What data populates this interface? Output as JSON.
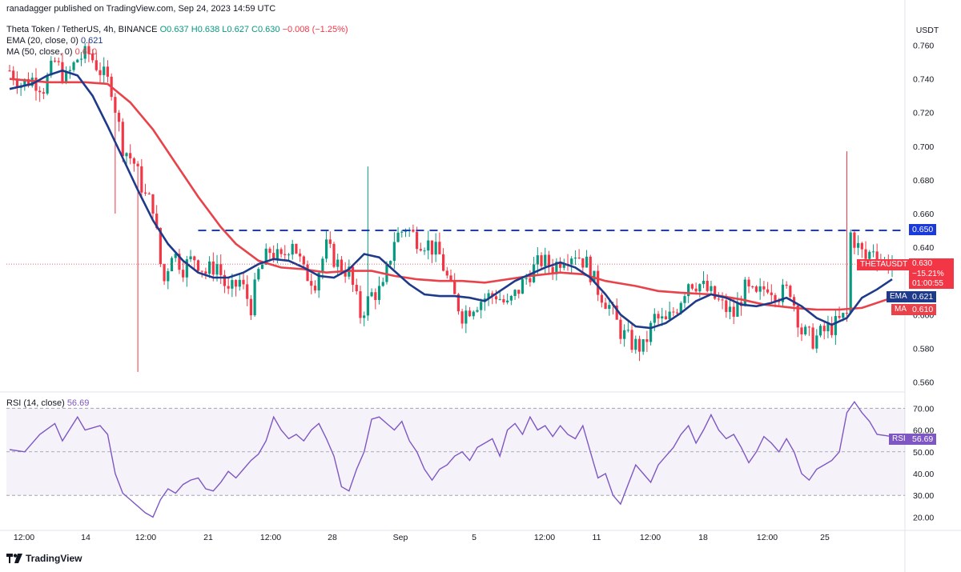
{
  "attribution": "ranadagger published on TradingView.com, Sep 24, 2023 14:59 UTC",
  "legend": {
    "symbol": "Theta Token / TetherUS, 4h, BINANCE",
    "ohlc": {
      "o": "O0.637",
      "h": "H0.638",
      "l": "L0.627",
      "c": "C0.630",
      "chg": "−0.008 (−1.25%)"
    },
    "ema": {
      "label": "EMA (20, close, 0)",
      "value": "0.621"
    },
    "ma": {
      "label": "MA (50, close, 0)",
      "value": "0.610"
    }
  },
  "price_axis": {
    "unit_label": "USDT",
    "ticks": [
      "0.760",
      "0.740",
      "0.720",
      "0.700",
      "0.680",
      "0.660",
      "0.640",
      "0.620",
      "0.600",
      "0.580",
      "0.560"
    ]
  },
  "labels": {
    "resistance": "0.650",
    "symbol_tag": "THETAUSDT",
    "last_price": "0.630",
    "pct_change": "−15.21%",
    "countdown": "01:00:55",
    "ema_tag": "EMA",
    "ema_val": "0.621",
    "ma_tag": "MA",
    "ma_val": "0.610"
  },
  "rsi": {
    "label": "RSI (14, close)",
    "value": "56.69",
    "tag": "RSI",
    "ticks": [
      "70.00",
      "60.00",
      "50.00",
      "40.00",
      "30.00",
      "20.00"
    ]
  },
  "time_axis": [
    "12:00",
    "14",
    "12:00",
    "21",
    "12:00",
    "28",
    "Sep",
    "5",
    "12:00",
    "11",
    "12:00",
    "18",
    "12:00",
    "25"
  ],
  "footer": {
    "brand": "TradingView"
  },
  "colors": {
    "up": "#089981",
    "down": "#f23645",
    "ema": "#1e3a8a",
    "ma": "#e8424a",
    "rsi": "#7e57c2",
    "resistance": "#1a3bd9"
  },
  "chart_data": {
    "type": "candlestick",
    "price_ylim": [
      0.555,
      0.765
    ],
    "rsi_ylim": [
      15,
      76
    ],
    "resistance_level": 0.65,
    "ema_points": [
      [
        0,
        0.734
      ],
      [
        6,
        0.737
      ],
      [
        10,
        0.742
      ],
      [
        14,
        0.745
      ],
      [
        18,
        0.742
      ],
      [
        22,
        0.73
      ],
      [
        26,
        0.712
      ],
      [
        30,
        0.693
      ],
      [
        34,
        0.674
      ],
      [
        38,
        0.656
      ],
      [
        42,
        0.642
      ],
      [
        46,
        0.632
      ],
      [
        50,
        0.625
      ],
      [
        54,
        0.622
      ],
      [
        58,
        0.622
      ],
      [
        62,
        0.625
      ],
      [
        66,
        0.63
      ],
      [
        70,
        0.633
      ],
      [
        74,
        0.632
      ],
      [
        78,
        0.628
      ],
      [
        82,
        0.623
      ],
      [
        86,
        0.622
      ],
      [
        90,
        0.627
      ],
      [
        94,
        0.636
      ],
      [
        98,
        0.634
      ],
      [
        102,
        0.626
      ],
      [
        106,
        0.618
      ],
      [
        110,
        0.612
      ],
      [
        114,
        0.611
      ],
      [
        118,
        0.611
      ],
      [
        122,
        0.61
      ],
      [
        126,
        0.608
      ],
      [
        130,
        0.614
      ],
      [
        134,
        0.62
      ],
      [
        138,
        0.624
      ],
      [
        142,
        0.628
      ],
      [
        146,
        0.631
      ],
      [
        150,
        0.628
      ],
      [
        154,
        0.622
      ],
      [
        158,
        0.612
      ],
      [
        162,
        0.6
      ],
      [
        166,
        0.593
      ],
      [
        170,
        0.592
      ],
      [
        174,
        0.595
      ],
      [
        178,
        0.601
      ],
      [
        182,
        0.608
      ],
      [
        186,
        0.612
      ],
      [
        190,
        0.61
      ],
      [
        194,
        0.606
      ],
      [
        198,
        0.605
      ],
      [
        202,
        0.607
      ],
      [
        206,
        0.61
      ],
      [
        210,
        0.605
      ],
      [
        214,
        0.598
      ],
      [
        218,
        0.594
      ],
      [
        222,
        0.598
      ],
      [
        226,
        0.61
      ],
      [
        230,
        0.615
      ],
      [
        234,
        0.621
      ]
    ],
    "ma_points": [
      [
        0,
        0.74
      ],
      [
        10,
        0.738
      ],
      [
        20,
        0.738
      ],
      [
        26,
        0.737
      ],
      [
        32,
        0.726
      ],
      [
        38,
        0.71
      ],
      [
        44,
        0.69
      ],
      [
        50,
        0.67
      ],
      [
        56,
        0.652
      ],
      [
        60,
        0.642
      ],
      [
        66,
        0.632
      ],
      [
        72,
        0.628
      ],
      [
        78,
        0.627
      ],
      [
        84,
        0.625
      ],
      [
        90,
        0.626
      ],
      [
        96,
        0.626
      ],
      [
        102,
        0.623
      ],
      [
        108,
        0.621
      ],
      [
        114,
        0.62
      ],
      [
        120,
        0.62
      ],
      [
        126,
        0.619
      ],
      [
        132,
        0.621
      ],
      [
        138,
        0.623
      ],
      [
        146,
        0.625
      ],
      [
        152,
        0.624
      ],
      [
        158,
        0.62
      ],
      [
        166,
        0.617
      ],
      [
        172,
        0.614
      ],
      [
        178,
        0.613
      ],
      [
        186,
        0.612
      ],
      [
        194,
        0.609
      ],
      [
        200,
        0.606
      ],
      [
        208,
        0.604
      ],
      [
        214,
        0.603
      ],
      [
        220,
        0.603
      ],
      [
        226,
        0.604
      ],
      [
        234,
        0.61
      ]
    ],
    "rsi_points": [
      [
        0,
        51
      ],
      [
        4,
        50
      ],
      [
        8,
        58
      ],
      [
        12,
        63
      ],
      [
        14,
        55
      ],
      [
        18,
        66
      ],
      [
        20,
        60
      ],
      [
        24,
        62
      ],
      [
        26,
        58
      ],
      [
        28,
        40
      ],
      [
        30,
        31
      ],
      [
        32,
        28
      ],
      [
        34,
        25
      ],
      [
        36,
        22
      ],
      [
        38,
        20
      ],
      [
        40,
        28
      ],
      [
        42,
        33
      ],
      [
        44,
        31
      ],
      [
        46,
        35
      ],
      [
        48,
        37
      ],
      [
        50,
        38
      ],
      [
        52,
        33
      ],
      [
        54,
        32
      ],
      [
        56,
        36
      ],
      [
        58,
        41
      ],
      [
        60,
        38
      ],
      [
        62,
        42
      ],
      [
        64,
        46
      ],
      [
        66,
        49
      ],
      [
        68,
        55
      ],
      [
        70,
        66
      ],
      [
        72,
        60
      ],
      [
        74,
        56
      ],
      [
        76,
        58
      ],
      [
        78,
        55
      ],
      [
        80,
        60
      ],
      [
        82,
        63
      ],
      [
        84,
        56
      ],
      [
        86,
        48
      ],
      [
        88,
        34
      ],
      [
        90,
        32
      ],
      [
        92,
        42
      ],
      [
        94,
        50
      ],
      [
        96,
        65
      ],
      [
        98,
        66
      ],
      [
        100,
        63
      ],
      [
        102,
        60
      ],
      [
        104,
        64
      ],
      [
        106,
        55
      ],
      [
        108,
        50
      ],
      [
        110,
        42
      ],
      [
        112,
        37
      ],
      [
        114,
        42
      ],
      [
        116,
        44
      ],
      [
        118,
        48
      ],
      [
        120,
        50
      ],
      [
        122,
        46
      ],
      [
        124,
        52
      ],
      [
        126,
        54
      ],
      [
        128,
        56
      ],
      [
        130,
        48
      ],
      [
        132,
        60
      ],
      [
        134,
        63
      ],
      [
        136,
        58
      ],
      [
        138,
        66
      ],
      [
        140,
        60
      ],
      [
        142,
        62
      ],
      [
        144,
        57
      ],
      [
        146,
        62
      ],
      [
        148,
        58
      ],
      [
        150,
        56
      ],
      [
        152,
        62
      ],
      [
        154,
        50
      ],
      [
        156,
        38
      ],
      [
        158,
        40
      ],
      [
        160,
        30
      ],
      [
        162,
        26
      ],
      [
        164,
        35
      ],
      [
        166,
        44
      ],
      [
        168,
        40
      ],
      [
        170,
        36
      ],
      [
        172,
        44
      ],
      [
        174,
        48
      ],
      [
        176,
        52
      ],
      [
        178,
        58
      ],
      [
        180,
        62
      ],
      [
        182,
        54
      ],
      [
        184,
        60
      ],
      [
        186,
        67
      ],
      [
        188,
        60
      ],
      [
        190,
        56
      ],
      [
        192,
        58
      ],
      [
        194,
        52
      ],
      [
        196,
        45
      ],
      [
        198,
        50
      ],
      [
        200,
        57
      ],
      [
        202,
        54
      ],
      [
        204,
        50
      ],
      [
        206,
        56
      ],
      [
        208,
        50
      ],
      [
        210,
        40
      ],
      [
        212,
        37
      ],
      [
        214,
        42
      ],
      [
        216,
        44
      ],
      [
        218,
        46
      ],
      [
        220,
        50
      ],
      [
        222,
        68
      ],
      [
        224,
        73
      ],
      [
        226,
        68
      ],
      [
        228,
        64
      ],
      [
        230,
        58
      ],
      [
        234,
        57
      ]
    ],
    "pivot_points": [
      [
        0,
        0.745
      ],
      [
        3,
        0.737
      ],
      [
        6,
        0.74
      ],
      [
        9,
        0.735
      ],
      [
        12,
        0.75
      ],
      [
        15,
        0.74
      ],
      [
        18,
        0.752
      ],
      [
        21,
        0.755
      ],
      [
        24,
        0.745
      ],
      [
        27,
        0.735
      ],
      [
        30,
        0.7
      ],
      [
        33,
        0.69
      ],
      [
        36,
        0.67
      ],
      [
        38,
        0.665
      ],
      [
        40,
        0.63
      ],
      [
        41,
        0.62
      ],
      [
        43,
        0.638
      ],
      [
        46,
        0.628
      ],
      [
        49,
        0.634
      ],
      [
        52,
        0.625
      ],
      [
        55,
        0.63
      ],
      [
        58,
        0.612
      ],
      [
        61,
        0.62
      ],
      [
        64,
        0.605
      ],
      [
        66,
        0.625
      ],
      [
        69,
        0.638
      ],
      [
        72,
        0.632
      ],
      [
        75,
        0.645
      ],
      [
        78,
        0.625
      ],
      [
        81,
        0.62
      ],
      [
        84,
        0.64
      ],
      [
        87,
        0.63
      ],
      [
        90,
        0.625
      ],
      [
        93,
        0.6
      ],
      [
        96,
        0.612
      ],
      [
        99,
        0.615
      ],
      [
        102,
        0.645
      ],
      [
        105,
        0.652
      ],
      [
        108,
        0.645
      ],
      [
        111,
        0.642
      ],
      [
        114,
        0.635
      ],
      [
        117,
        0.615
      ],
      [
        120,
        0.6
      ],
      [
        123,
        0.606
      ],
      [
        126,
        0.61
      ],
      [
        129,
        0.612
      ],
      [
        132,
        0.605
      ],
      [
        135,
        0.615
      ],
      [
        138,
        0.625
      ],
      [
        141,
        0.632
      ],
      [
        144,
        0.628
      ],
      [
        147,
        0.635
      ],
      [
        150,
        0.637
      ],
      [
        153,
        0.63
      ],
      [
        156,
        0.615
      ],
      [
        159,
        0.605
      ],
      [
        162,
        0.59
      ],
      [
        165,
        0.583
      ],
      [
        168,
        0.58
      ],
      [
        171,
        0.598
      ],
      [
        174,
        0.595
      ],
      [
        177,
        0.605
      ],
      [
        180,
        0.62
      ],
      [
        183,
        0.618
      ],
      [
        186,
        0.612
      ],
      [
        189,
        0.605
      ],
      [
        192,
        0.6
      ],
      [
        195,
        0.615
      ],
      [
        198,
        0.61
      ],
      [
        201,
        0.618
      ],
      [
        204,
        0.612
      ],
      [
        207,
        0.615
      ],
      [
        210,
        0.59
      ],
      [
        213,
        0.585
      ],
      [
        216,
        0.59
      ],
      [
        219,
        0.594
      ],
      [
        222,
        0.6
      ],
      [
        223,
        0.648
      ],
      [
        225,
        0.64
      ],
      [
        227,
        0.633
      ],
      [
        229,
        0.64
      ],
      [
        231,
        0.632
      ],
      [
        234,
        0.63
      ]
    ]
  }
}
